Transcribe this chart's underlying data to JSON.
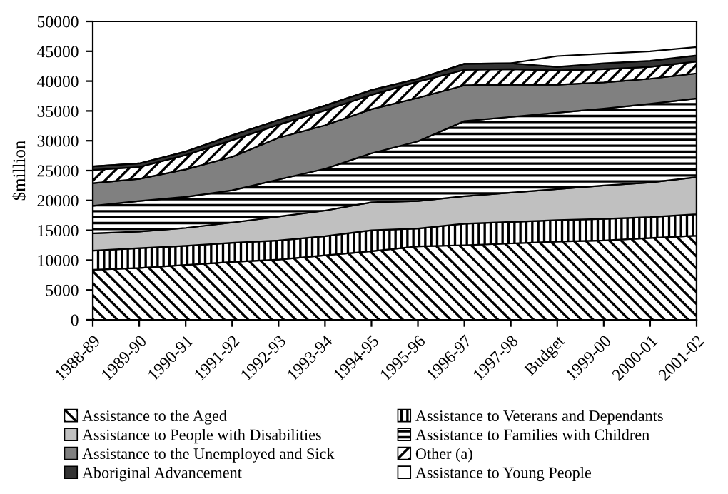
{
  "chart_data": {
    "type": "area",
    "stacked": true,
    "ylabel": "$million",
    "categories": [
      "1988-89",
      "1989-90",
      "1990-91",
      "1991-92",
      "1992-93",
      "1993-94",
      "1994-95",
      "1995-96",
      "1996-97",
      "1997-98",
      "Budget",
      "1999-00",
      "2000-01",
      "2001-02"
    ],
    "ylim": [
      0,
      50000
    ],
    "yticks": [
      0,
      5000,
      10000,
      15000,
      20000,
      25000,
      30000,
      35000,
      40000,
      45000,
      50000
    ],
    "grid": false,
    "legend": "bottom",
    "series": [
      {
        "name": "Assistance to the Aged",
        "color": "#000000",
        "values": [
          8400,
          8700,
          9200,
          9700,
          10100,
          10800,
          11500,
          12300,
          12500,
          12800,
          13100,
          13300,
          13700,
          14100
        ]
      },
      {
        "name": "Assistance to Veterans and Dependants",
        "color": "#000000",
        "values": [
          3200,
          3300,
          3200,
          3200,
          3200,
          3200,
          3500,
          3000,
          3600,
          3600,
          3600,
          3600,
          3500,
          3600
        ]
      },
      {
        "name": "Assistance to People with Disabilities",
        "color": "#c0c0c0",
        "values": [
          2900,
          2800,
          3000,
          3400,
          4000,
          4300,
          4700,
          4600,
          4600,
          4900,
          5200,
          5600,
          5800,
          6200
        ]
      },
      {
        "name": "Assistance to Families with Children",
        "color": "#000000",
        "values": [
          4600,
          5100,
          5200,
          5400,
          6200,
          7000,
          8200,
          10000,
          12600,
          12700,
          12800,
          12900,
          13200,
          13200
        ]
      },
      {
        "name": "Assistance to the Unemployed and Sick",
        "color": "#808080",
        "values": [
          3800,
          3700,
          4600,
          5600,
          7000,
          7300,
          7400,
          7300,
          6000,
          5400,
          4700,
          4400,
          4200,
          4200
        ]
      },
      {
        "name": "Other (a)",
        "color": "#000000",
        "values": [
          2200,
          2000,
          2400,
          2800,
          2200,
          2500,
          2400,
          2700,
          2600,
          2600,
          2400,
          2200,
          2000,
          2000
        ]
      },
      {
        "name": "Aboriginal Advancement",
        "color": "#333333",
        "values": [
          600,
          600,
          600,
          800,
          800,
          800,
          800,
          500,
          1000,
          1000,
          600,
          1000,
          1000,
          1000
        ]
      },
      {
        "name": "Assistance to Young People",
        "color": "#ffffff",
        "values": [
          0,
          0,
          0,
          0,
          0,
          0,
          0,
          0,
          0,
          0,
          1800,
          1600,
          1600,
          1400
        ]
      }
    ]
  }
}
